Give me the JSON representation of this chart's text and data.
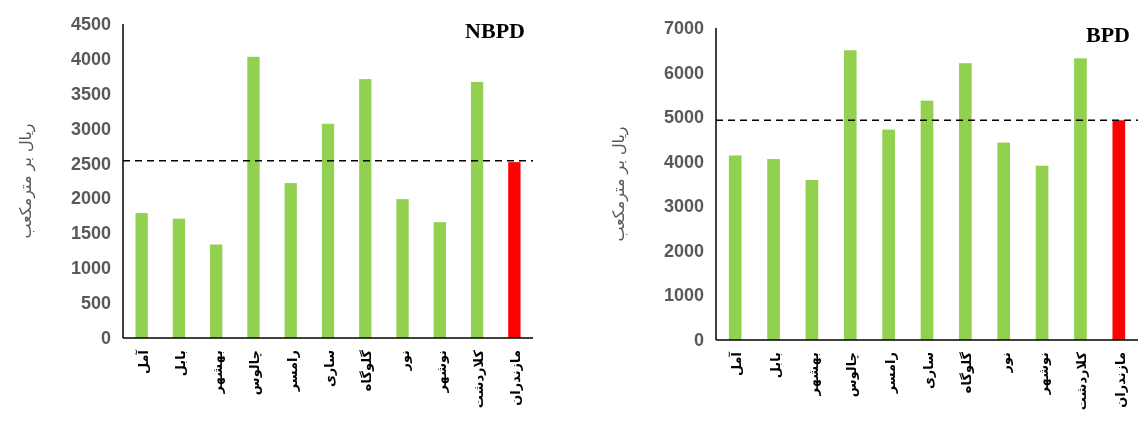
{
  "chart_data": [
    {
      "type": "bar",
      "title": "NBPD",
      "ylabel": "ریال بر مترمکعب",
      "categories": [
        "آمل",
        "بابل",
        "بهشهر",
        "چالوس",
        "رامسر",
        "ساری",
        "گلوگاه",
        "نور",
        "نوشهر",
        "کلاردشت",
        "مازندران"
      ],
      "values": [
        1790,
        1710,
        1340,
        4030,
        2220,
        3070,
        3710,
        1990,
        1660,
        3670,
        2520
      ],
      "colors": [
        "#92d050",
        "#92d050",
        "#92d050",
        "#92d050",
        "#92d050",
        "#92d050",
        "#92d050",
        "#92d050",
        "#92d050",
        "#92d050",
        "#ff0000"
      ],
      "ylim": [
        0,
        4500
      ],
      "yticks": [
        0,
        500,
        1000,
        1500,
        2000,
        2500,
        3000,
        3500,
        4000,
        4500
      ],
      "ref_lines": [
        {
          "axis": "y",
          "value": 2540,
          "color": "#000000",
          "line_style": "dashed"
        }
      ]
    },
    {
      "type": "bar",
      "title": "BPD",
      "ylabel": "ریال بر مترمکعب",
      "categories": [
        "آمل",
        "بابل",
        "بهشهر",
        "چالوس",
        "رامسر",
        "ساری",
        "گلوگاه",
        "نور",
        "نوشهر",
        "کلاردشت",
        "مازندران"
      ],
      "values": [
        4140,
        4060,
        3590,
        6500,
        4720,
        5370,
        6210,
        4430,
        3910,
        6320,
        4930
      ],
      "colors": [
        "#92d050",
        "#92d050",
        "#92d050",
        "#92d050",
        "#92d050",
        "#92d050",
        "#92d050",
        "#92d050",
        "#92d050",
        "#92d050",
        "#ff0000"
      ],
      "ylim": [
        0,
        7000
      ],
      "yticks": [
        0,
        1000,
        2000,
        3000,
        4000,
        5000,
        6000,
        7000
      ],
      "ref_lines": [
        {
          "axis": "y",
          "value": 4930,
          "color": "#000000",
          "line_style": "dashed"
        }
      ]
    }
  ]
}
